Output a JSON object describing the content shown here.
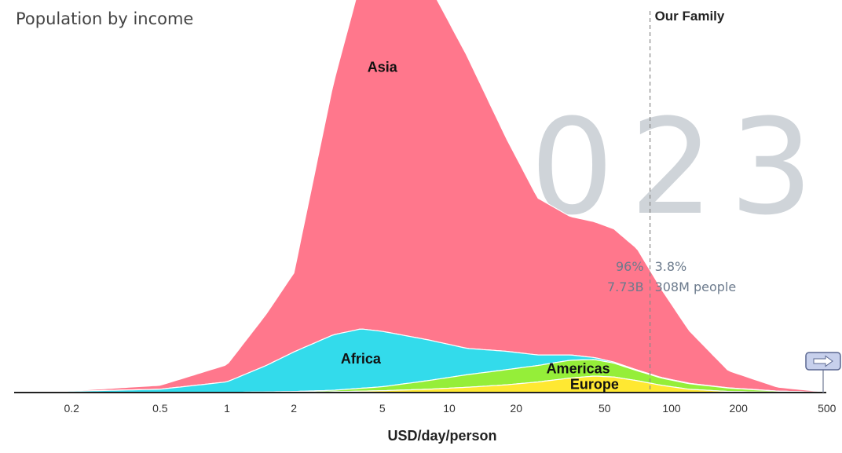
{
  "chart_data": {
    "type": "area",
    "title": "Population by income",
    "year": "2023",
    "xlabel": "USD/day/person",
    "x_scale": "log",
    "x_ticks": [
      0.2,
      0.5,
      1,
      2,
      5,
      10,
      20,
      50,
      100,
      200,
      500
    ],
    "x_tick_labels": [
      "0.2",
      "0.5",
      "1",
      "2",
      "5",
      "10",
      "20",
      "50",
      "100",
      "200",
      "500"
    ],
    "xlim": [
      0.1,
      520
    ],
    "stacked": true,
    "series": [
      {
        "name": "Europe",
        "color": "#ffe832",
        "points": [
          [
            0.1,
            0
          ],
          [
            0.5,
            0
          ],
          [
            1,
            0
          ],
          [
            1.8,
            0.2
          ],
          [
            3,
            0.6
          ],
          [
            5,
            1.4
          ],
          [
            8,
            2.5
          ],
          [
            12,
            4
          ],
          [
            18,
            5.8
          ],
          [
            25,
            8
          ],
          [
            35,
            11
          ],
          [
            45,
            12.5
          ],
          [
            55,
            11.8
          ],
          [
            70,
            9
          ],
          [
            90,
            5.5
          ],
          [
            120,
            2.5
          ],
          [
            180,
            0.8
          ],
          [
            300,
            0.2
          ],
          [
            520,
            0
          ]
        ]
      },
      {
        "name": "Americas",
        "color": "#95ee39",
        "points": [
          [
            0.1,
            0
          ],
          [
            0.5,
            0
          ],
          [
            1,
            0.1
          ],
          [
            2,
            0.5
          ],
          [
            3,
            1.1
          ],
          [
            5,
            3
          ],
          [
            8,
            6.5
          ],
          [
            12,
            9.5
          ],
          [
            18,
            11.5
          ],
          [
            25,
            12.5
          ],
          [
            35,
            13.5
          ],
          [
            45,
            12.5
          ],
          [
            55,
            10.5
          ],
          [
            70,
            7.5
          ],
          [
            90,
            5.5
          ],
          [
            120,
            4.2
          ],
          [
            180,
            2.6
          ],
          [
            300,
            0.8
          ],
          [
            520,
            0
          ]
        ]
      },
      {
        "name": "Africa",
        "color": "#33dbeb",
        "points": [
          [
            0.1,
            0.3
          ],
          [
            0.2,
            1
          ],
          [
            0.5,
            2.5
          ],
          [
            1,
            8
          ],
          [
            1.5,
            20
          ],
          [
            2,
            30
          ],
          [
            3,
            42
          ],
          [
            4,
            45
          ],
          [
            5,
            42
          ],
          [
            8,
            31
          ],
          [
            12,
            20
          ],
          [
            18,
            14
          ],
          [
            25,
            8
          ],
          [
            35,
            4
          ],
          [
            45,
            1.5
          ],
          [
            55,
            0.8
          ],
          [
            70,
            0.6
          ],
          [
            90,
            0.4
          ],
          [
            120,
            0.3
          ],
          [
            180,
            0.2
          ],
          [
            300,
            0.1
          ],
          [
            520,
            0
          ]
        ]
      },
      {
        "name": "Asia",
        "color": "#ff778c",
        "points": [
          [
            0.1,
            0
          ],
          [
            0.2,
            0.4
          ],
          [
            0.5,
            3
          ],
          [
            1,
            13
          ],
          [
            1.5,
            39
          ],
          [
            2,
            60
          ],
          [
            3,
            190
          ],
          [
            4,
            264
          ],
          [
            5,
            287
          ],
          [
            8,
            271
          ],
          [
            12,
            222
          ],
          [
            18,
            162
          ],
          [
            25,
            119
          ],
          [
            35,
            105
          ],
          [
            45,
            103
          ],
          [
            55,
            101
          ],
          [
            70,
            92
          ],
          [
            90,
            67
          ],
          [
            120,
            40
          ],
          [
            180,
            13
          ],
          [
            300,
            3
          ],
          [
            520,
            0
          ]
        ]
      }
    ],
    "marker": {
      "label": "Our Family",
      "x": 80
    },
    "stats": {
      "left_pct": "96%",
      "right_pct": "3.8%",
      "left_count": "7.73B",
      "right_count": "308M people"
    },
    "grid": false,
    "legend": "labels inside areas"
  }
}
